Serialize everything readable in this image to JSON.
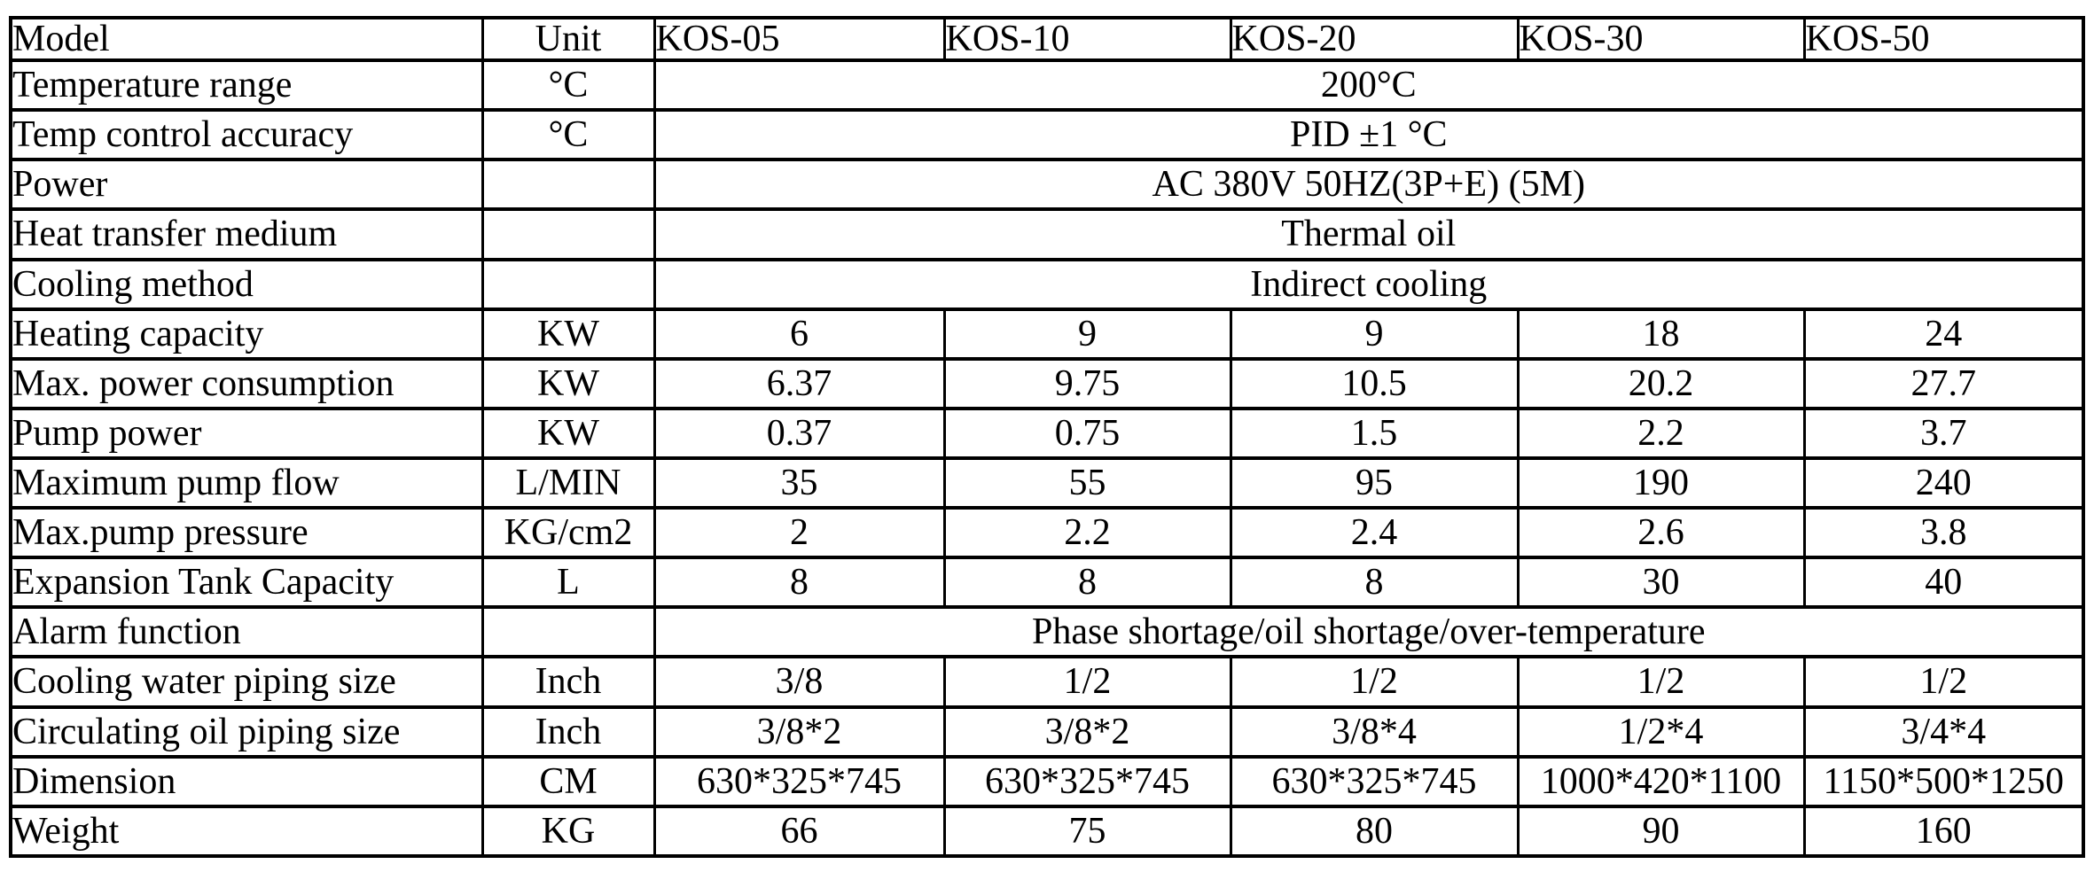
{
  "colors": {
    "background": "#ffffff",
    "border": "#000000",
    "text": "#000000"
  },
  "table": {
    "header": {
      "model_label": "Model",
      "unit_label": "Unit",
      "models": [
        "KOS-05",
        "KOS-10",
        "KOS-20",
        "KOS-30",
        "KOS-50"
      ]
    },
    "rows": [
      {
        "label": "Temperature range",
        "unit": "°C",
        "span": "200°C"
      },
      {
        "label": "Temp control accuracy",
        "unit": "°C",
        "span": "PID ±1 °C"
      },
      {
        "label": "Power",
        "unit": "",
        "span": "AC 380V 50HZ(3P+E) (5M)"
      },
      {
        "label": "Heat transfer medium",
        "unit": "",
        "span": "Thermal oil"
      },
      {
        "label": "Cooling method",
        "unit": "",
        "span": "Indirect cooling"
      },
      {
        "label": "Heating capacity",
        "unit": "KW",
        "values": [
          "6",
          "9",
          "9",
          "18",
          "24"
        ]
      },
      {
        "label": "Max. power consumption",
        "unit": "KW",
        "values": [
          "6.37",
          "9.75",
          "10.5",
          "20.2",
          "27.7"
        ]
      },
      {
        "label": "Pump power",
        "unit": "KW",
        "values": [
          "0.37",
          "0.75",
          "1.5",
          "2.2",
          "3.7"
        ]
      },
      {
        "label": "Maximum pump flow",
        "unit": "L/MIN",
        "values": [
          "35",
          "55",
          "95",
          "190",
          "240"
        ]
      },
      {
        "label": "Max.pump pressure",
        "unit": "KG/cm2",
        "values": [
          "2",
          "2.2",
          "2.4",
          "2.6",
          "3.8"
        ]
      },
      {
        "label": "Expansion Tank Capacity",
        "unit": "L",
        "values": [
          "8",
          "8",
          "8",
          "30",
          "40"
        ]
      },
      {
        "label": "Alarm function",
        "unit": "",
        "span": "Phase shortage/oil shortage/over-temperature"
      },
      {
        "label": "Cooling water piping size",
        "unit": "Inch",
        "values": [
          "3/8",
          "1/2",
          "1/2",
          "1/2",
          "1/2"
        ]
      },
      {
        "label": "Circulating oil piping size",
        "unit": "Inch",
        "values": [
          "3/8*2",
          "3/8*2",
          "3/8*4",
          "1/2*4",
          "3/4*4"
        ]
      },
      {
        "label": "Dimension",
        "unit": "CM",
        "values": [
          "630*325*745",
          "630*325*745",
          "630*325*745",
          "1000*420*1100",
          "1150*500*1250"
        ]
      },
      {
        "label": "Weight",
        "unit": "KG",
        "values": [
          "66",
          "75",
          "80",
          "90",
          "160"
        ]
      }
    ]
  }
}
